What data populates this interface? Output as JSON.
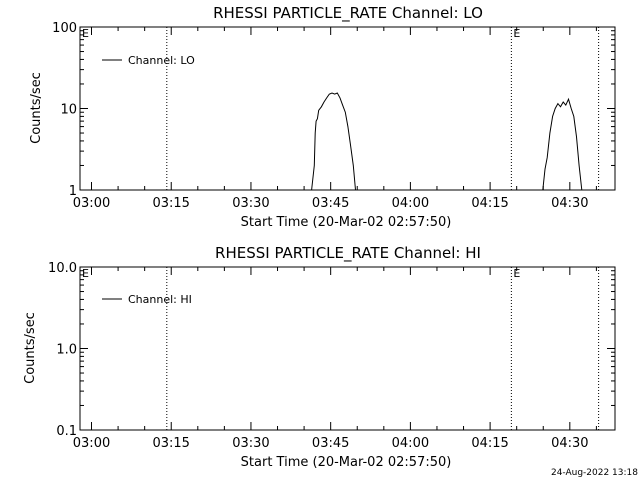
{
  "chart_data": [
    {
      "type": "line",
      "title": "RHESSI PARTICLE_RATE Channel: LO",
      "xlabel": "Start Time (20-Mar-02 02:57:50)",
      "ylabel": "Counts/sec",
      "y_scale": "log",
      "ylim": [
        1,
        100
      ],
      "y_ticks": [
        "1",
        "10",
        "100"
      ],
      "xlim": [
        "02:57:50",
        "04:38:30"
      ],
      "x_ticks": [
        "03:00",
        "03:15",
        "03:30",
        "03:45",
        "04:00",
        "04:15",
        "04:30"
      ],
      "grid": false,
      "legend_position": "top-left",
      "series": [
        {
          "name": "Channel: LO",
          "color": "#000000",
          "points": [
            [
              "03:41:25",
              1.0
            ],
            [
              "03:41:55",
              2.0
            ],
            [
              "03:42:05",
              5.0
            ],
            [
              "03:42:15",
              7.0
            ],
            [
              "03:42:30",
              7.5
            ],
            [
              "03:42:45",
              9.5
            ],
            [
              "03:43:15",
              10.5
            ],
            [
              "03:43:45",
              12.0
            ],
            [
              "03:44:15",
              13.5
            ],
            [
              "03:44:45",
              15.0
            ],
            [
              "03:45:15",
              15.5
            ],
            [
              "03:45:45",
              15.0
            ],
            [
              "03:46:15",
              15.5
            ],
            [
              "03:46:45",
              13.5
            ],
            [
              "03:47:15",
              11.0
            ],
            [
              "03:47:45",
              9.0
            ],
            [
              "03:48:15",
              6.0
            ],
            [
              "03:48:45",
              3.5
            ],
            [
              "03:49:15",
              2.0
            ],
            [
              "03:49:40",
              1.0
            ],
            [
              "04:24:55",
              1.0
            ],
            [
              "04:25:20",
              1.8
            ],
            [
              "04:25:45",
              2.5
            ],
            [
              "04:26:15",
              5.0
            ],
            [
              "04:26:45",
              8.0
            ],
            [
              "04:27:15",
              10.0
            ],
            [
              "04:27:45",
              11.5
            ],
            [
              "04:28:15",
              10.5
            ],
            [
              "04:28:45",
              12.0
            ],
            [
              "04:29:15",
              11.0
            ],
            [
              "04:29:45",
              13.0
            ],
            [
              "04:30:15",
              10.0
            ],
            [
              "04:30:45",
              8.0
            ],
            [
              "04:31:15",
              4.5
            ],
            [
              "04:31:45",
              2.0
            ],
            [
              "04:32:15",
              1.0
            ]
          ]
        }
      ],
      "markers": [
        {
          "time": "03:14:10",
          "label": ""
        },
        {
          "time": "04:19:00",
          "label": "E"
        },
        {
          "time": "04:35:25",
          "label": ""
        }
      ],
      "corner_flag": "E"
    },
    {
      "type": "line",
      "title": "RHESSI PARTICLE_RATE Channel: HI",
      "xlabel": "Start Time (20-Mar-02 02:57:50)",
      "ylabel": "Counts/sec",
      "y_scale": "log",
      "ylim": [
        0.1,
        10
      ],
      "y_ticks": [
        "0.1",
        "1.0",
        "10.0"
      ],
      "xlim": [
        "02:57:50",
        "04:38:30"
      ],
      "x_ticks": [
        "03:00",
        "03:15",
        "03:30",
        "03:45",
        "04:00",
        "04:15",
        "04:30"
      ],
      "grid": false,
      "legend_position": "top-left",
      "series": [
        {
          "name": "Channel: HI",
          "color": "#000000",
          "points": []
        }
      ],
      "markers": [
        {
          "time": "03:14:10",
          "label": ""
        },
        {
          "time": "04:19:00",
          "label": "E"
        },
        {
          "time": "04:35:25",
          "label": ""
        }
      ],
      "corner_flag": "E"
    }
  ],
  "timestamp": "24-Aug-2022 13:18"
}
